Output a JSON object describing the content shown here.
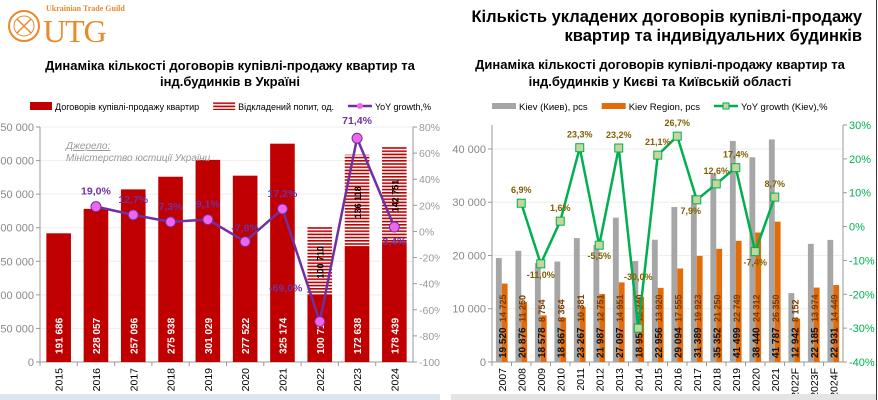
{
  "logo": {
    "small": "Ukrainian Trade Guild",
    "big": "UTG"
  },
  "header": {
    "title": "Кількість укладених договорів купівлі-продажу квартир та індивідуальних будинків"
  },
  "source": {
    "label": "Джерело:",
    "text": "Міністерство юстиції України"
  },
  "colors": {
    "ukraine_bars": "#c00000",
    "deferred_hatch": "#c00000",
    "ukraine_growth": "#7030a0",
    "ukraine_marker": "#ee66ee",
    "kiev": "#a6a6a6",
    "kiev_region": "#e36c09",
    "kiev_growth": "#00b050",
    "kiev_marker": "#c3d69b"
  },
  "chart_data": [
    {
      "type": "bar",
      "title": "Динаміка кількості договорів купівлі-продажу квартир та інд.будинків в Україні",
      "categories": [
        "2015",
        "2016",
        "2017",
        "2018",
        "2019",
        "2020",
        "2021",
        "2022",
        "2023",
        "2024"
      ],
      "ylim": [
        0,
        350000
      ],
      "y_ticks": [
        "0",
        "50 000",
        "100 000",
        "150 000",
        "200 000",
        "250 000",
        "300 000",
        "350 000"
      ],
      "y2lim": [
        -100,
        80
      ],
      "y2_ticks": [
        "-100%",
        "-80%",
        "-60%",
        "-40%",
        "-20%",
        "0%",
        "20%",
        "40%",
        "60%",
        "80%"
      ],
      "grid": true,
      "legend": "top",
      "series": [
        {
          "name": "Договорів купівлі-продажу квартир",
          "kind": "bar",
          "values": [
            191686,
            228057,
            257096,
            275938,
            301029,
            277522,
            325174,
            100710,
            172638,
            178439
          ],
          "labels": [
            "191 686",
            "228 057",
            "257 096",
            "275 938",
            "301 029",
            "277 522",
            "325 174",
            "100 710",
            "172 638",
            "178 439"
          ]
        },
        {
          "name": "Відкладений попит, од.",
          "kind": "stacked-hatched-bar",
          "values": [
            null,
            null,
            null,
            null,
            null,
            null,
            null,
            100710,
            136118,
            142751
          ],
          "labels": [
            "",
            "",
            "",
            "",
            "",
            "",
            "",
            "100 710",
            "136 118",
            "142 751"
          ]
        },
        {
          "name": "YoY growth,%",
          "kind": "line",
          "axis": "right",
          "values": [
            null,
            19.0,
            12.7,
            7.3,
            9.1,
            -7.8,
            17.2,
            -69.0,
            71.4,
            3.4
          ],
          "labels": [
            "",
            "19,0%",
            "12,7%",
            "7,3%",
            "9,1%",
            "-7,8%",
            "17,2%",
            "-69,0%",
            "71,4%",
            "3,4%"
          ]
        }
      ]
    },
    {
      "type": "bar",
      "title": "Динаміка кількості договорів купівлі-продажу квартир та інд.будинків у Києві та Київській області",
      "categories": [
        "2007",
        "2008",
        "2009",
        "2010",
        "2011",
        "2012",
        "2013",
        "2014",
        "2015",
        "2016",
        "2017",
        "2018",
        "2019",
        "2020",
        "2021",
        "2022F",
        "2023F",
        "2024F"
      ],
      "ylim": [
        0,
        44500
      ],
      "y_ticks": [
        "0",
        "10 000",
        "20 000",
        "30 000",
        "40 000"
      ],
      "y2lim": [
        -40,
        30
      ],
      "y2_ticks": [
        "-40%",
        "-30%",
        "-20%",
        "-10%",
        "0%",
        "10%",
        "20%",
        "30%"
      ],
      "grid": true,
      "legend": "top",
      "series": [
        {
          "name": "Kiev (Киев), pcs",
          "kind": "bar",
          "values": [
            19520,
            20876,
            18578,
            18867,
            23267,
            21987,
            27097,
            18959,
            22956,
            29094,
            31389,
            35352,
            41499,
            38440,
            41787,
            12942,
            22185,
            22931
          ],
          "labels": [
            "19 520",
            "20 876",
            "18 578",
            "18 867",
            "23 267",
            "21 987",
            "27 097",
            "18 959",
            "22 956",
            "29 094",
            "31 389",
            "35 352",
            "41 499",
            "38 440",
            "41 787",
            "12 942",
            "22 185",
            "22 931"
          ]
        },
        {
          "name": "Kiev Region, pcs",
          "kind": "bar",
          "values": [
            14725,
            11250,
            8754,
            8364,
            10381,
            12751,
            14951,
            12240,
            13920,
            17555,
            19923,
            21250,
            22749,
            24312,
            26350,
            8152,
            13974,
            14449
          ],
          "labels": [
            "14 725",
            "11 250",
            "8 754",
            "8 364",
            "10 381",
            "12 751",
            "14 951",
            "12 240",
            "13 920",
            "17 555",
            "19 923",
            "21 250",
            "22 749",
            "24 312",
            "26 350",
            "8 152",
            "13 974",
            "14 449"
          ]
        },
        {
          "name": "YoY growth (Kiev),%",
          "kind": "line",
          "axis": "right",
          "values": [
            null,
            6.9,
            -11.0,
            1.6,
            23.3,
            -5.5,
            23.2,
            -30.0,
            21.1,
            26.7,
            7.9,
            12.6,
            17.4,
            -7.4,
            8.7,
            null,
            null,
            null
          ],
          "labels": [
            "",
            "6,9%",
            "-11,0%",
            "1,6%",
            "23,3%",
            "-5,5%",
            "23,2%",
            "-30,0%",
            "21,1%",
            "26,7%",
            "7,9%",
            "12,6%",
            "17,4%",
            "-7,4%",
            "8,7%",
            "",
            "",
            ""
          ]
        }
      ]
    }
  ]
}
